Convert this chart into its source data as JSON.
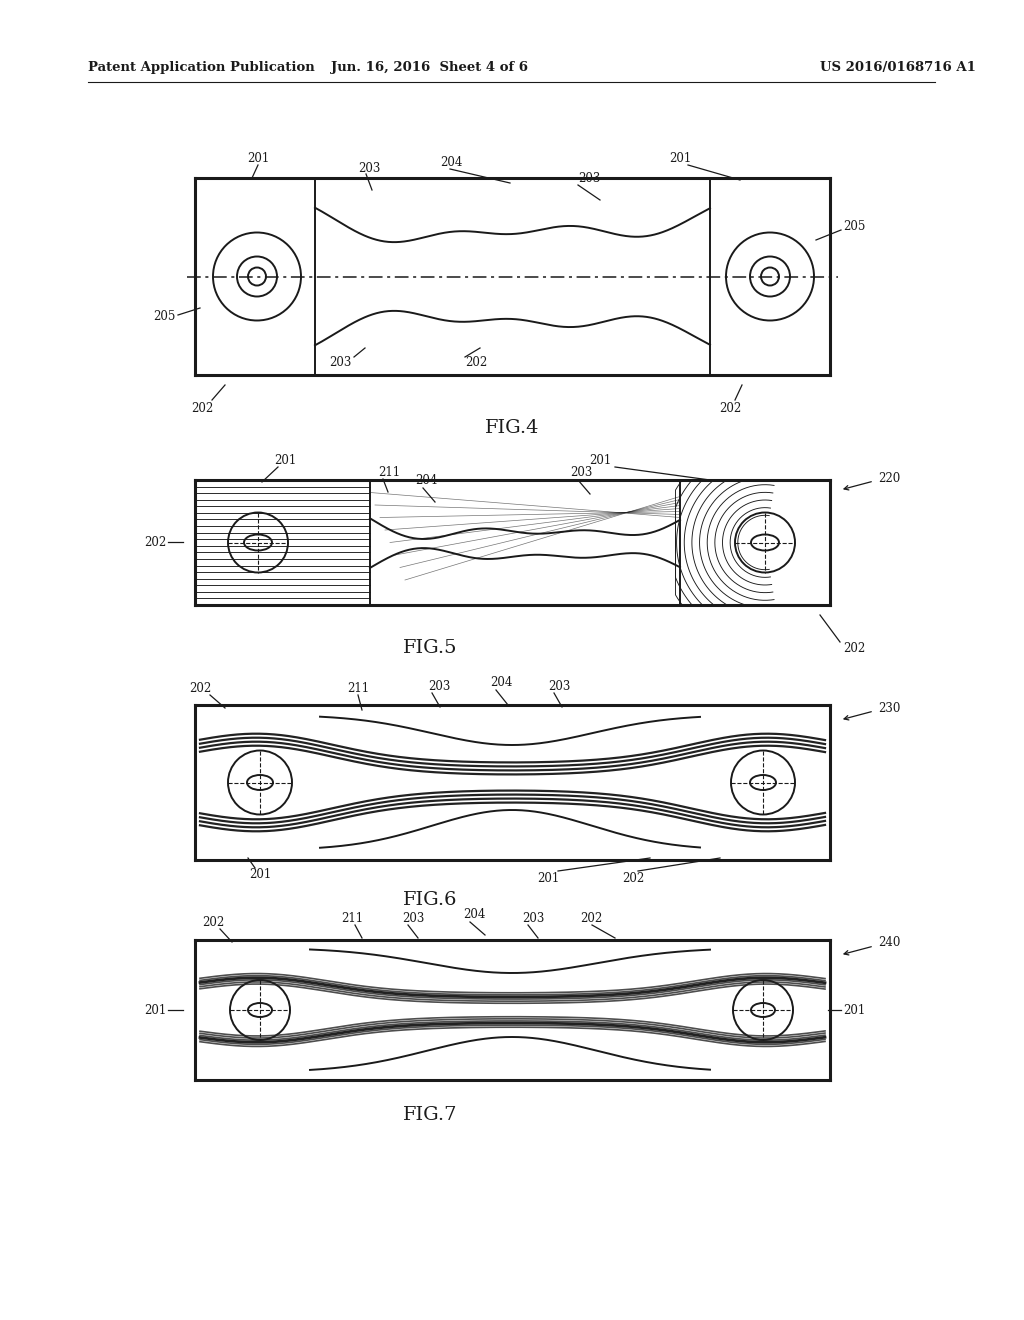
{
  "page_width": 10.24,
  "page_height": 13.2,
  "bg_color": "#ffffff",
  "line_color": "#1a1a1a",
  "header_left": "Patent Application Publication",
  "header_mid": "Jun. 16, 2016  Sheet 4 of 6",
  "header_right": "US 2016/0168716 A1",
  "fig4_label": "FIG.4",
  "fig5_label": "FIG.5",
  "fig6_label": "FIG.6",
  "fig7_label": "FIG.7"
}
